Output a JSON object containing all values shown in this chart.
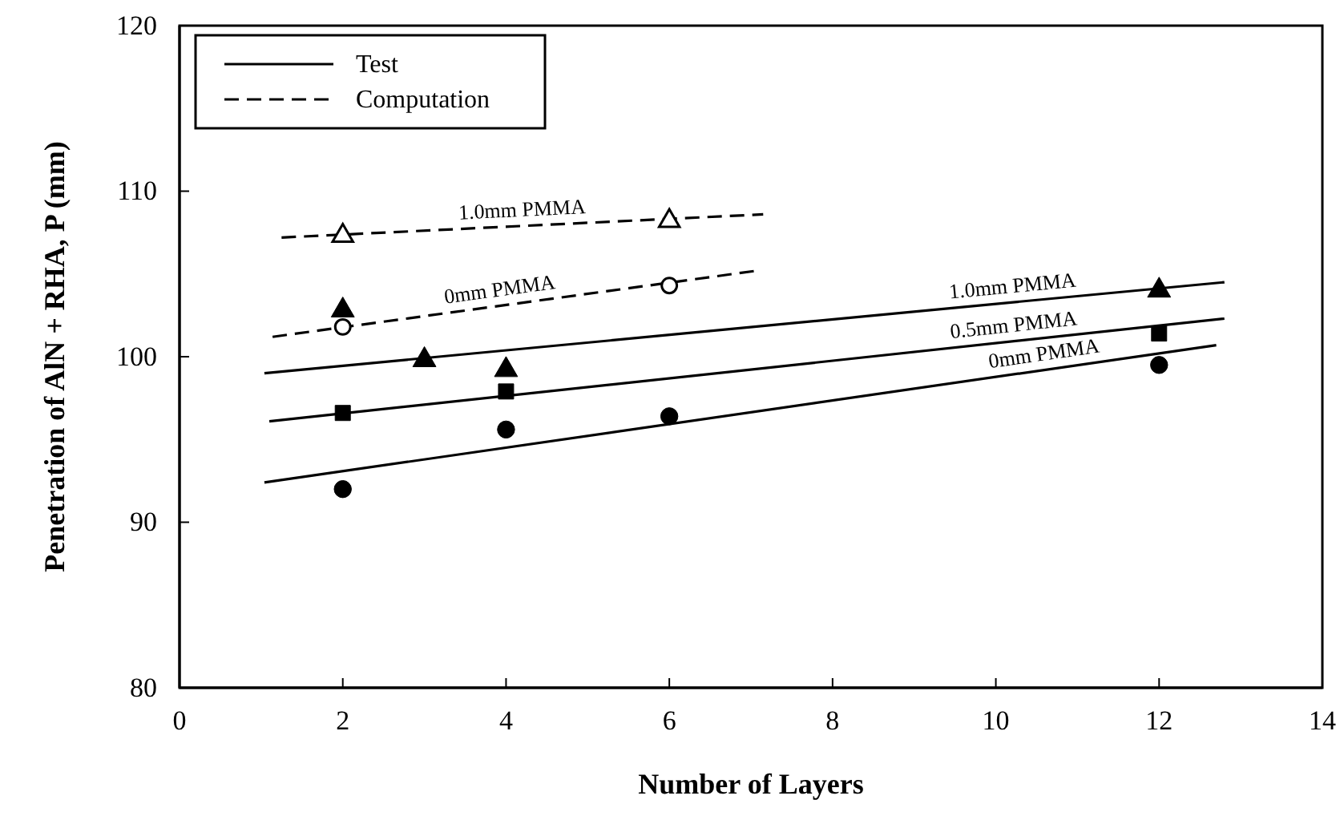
{
  "chart_data": {
    "type": "scatter",
    "xlabel": "Number of Layers",
    "ylabel": "Penetration of AlN + RHA, P (mm)",
    "xlim": [
      0,
      14
    ],
    "xticks": [
      0,
      2,
      4,
      6,
      8,
      10,
      12,
      14
    ],
    "ylim": [
      80,
      120
    ],
    "yticks": [
      80,
      90,
      100,
      110,
      120
    ],
    "grid": false,
    "legend": "top left",
    "series": [
      {
        "name": "Test",
        "type": "line",
        "line_style": "solid",
        "marker": "none",
        "color": "#000000",
        "x": [
          1.04,
          12.7
        ],
        "values": [
          92.4,
          100.7
        ]
      },
      {
        "type": "line",
        "line_style": "solid",
        "marker": "none",
        "color": "#000000",
        "x": [
          1.1,
          12.8
        ],
        "values": [
          96.1,
          102.3
        ]
      },
      {
        "type": "line",
        "line_style": "solid",
        "marker": "none",
        "color": "#000000",
        "x": [
          1.04,
          12.8
        ],
        "values": [
          99.0,
          104.5
        ]
      },
      {
        "name": "Computation",
        "type": "line",
        "line_style": "dashed",
        "marker": "none",
        "color": "#000000",
        "x": [
          1.14,
          7.08
        ],
        "values": [
          101.2,
          105.2
        ]
      },
      {
        "type": "line",
        "line_style": "dashed",
        "marker": "none",
        "color": "#000000",
        "x": [
          1.25,
          7.15
        ],
        "values": [
          107.2,
          108.6
        ]
      },
      {
        "marker": "circle",
        "color": "#000000",
        "x": [
          2,
          4,
          6,
          12
        ],
        "values": [
          92.0,
          95.6,
          96.4,
          99.5
        ]
      },
      {
        "marker": "square",
        "color": "#000000",
        "x": [
          2,
          4,
          12
        ],
        "values": [
          96.6,
          97.9,
          101.4
        ]
      },
      {
        "marker": "triangle",
        "color": "#000000",
        "x": [
          2,
          3,
          4,
          12
        ],
        "values": [
          102.8,
          99.8,
          99.2,
          104.0
        ]
      },
      {
        "marker": "circle",
        "color": "#000000",
        "x": [
          2,
          6
        ],
        "values": [
          101.8,
          104.3
        ]
      },
      {
        "marker": "triangle",
        "color": "#000000",
        "x": [
          2,
          6
        ],
        "values": [
          107.3,
          108.2
        ]
      }
    ],
    "annotations": [
      "1.0mm PMMA",
      "0mm PMMA",
      "1.0mm PMMA",
      "0.5mm PMMA",
      "0mm PMMA"
    ]
  }
}
